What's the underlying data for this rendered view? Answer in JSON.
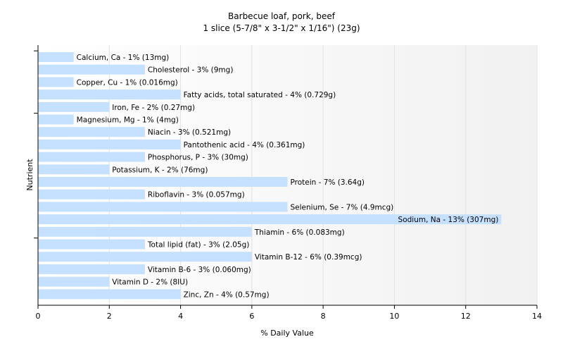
{
  "chart_data": {
    "type": "bar",
    "orientation": "horizontal",
    "title": "Barbecue loaf, pork, beef",
    "subtitle": "1 slice (5-7/8\" x 3-1/2\" x 1/16\") (23g)",
    "xlabel": "% Daily Value",
    "ylabel": "Nutrient",
    "xlim": [
      0,
      14
    ],
    "x_ticks": [
      "0",
      "2",
      "4",
      "6",
      "8",
      "10",
      "12",
      "14"
    ],
    "grid": "vertical",
    "bar_color": "#c6e0ff",
    "categories": [
      "Calcium, Ca",
      "Cholesterol",
      "Copper, Cu",
      "Fatty acids, total saturated",
      "Iron, Fe",
      "Magnesium, Mg",
      "Niacin",
      "Pantothenic acid",
      "Phosphorus, P",
      "Potassium, K",
      "Protein",
      "Riboflavin",
      "Selenium, Se",
      "Sodium, Na",
      "Thiamin",
      "Total lipid (fat)",
      "Vitamin B-12",
      "Vitamin B-6",
      "Vitamin D",
      "Zinc, Zn"
    ],
    "values": [
      1,
      3,
      1,
      4,
      2,
      1,
      3,
      4,
      3,
      2,
      7,
      3,
      7,
      13,
      6,
      3,
      6,
      3,
      2,
      4
    ],
    "labels": [
      "Calcium, Ca - 1% (13mg)",
      "Cholesterol - 3% (9mg)",
      "Copper, Cu - 1% (0.016mg)",
      "Fatty acids, total saturated - 4% (0.729g)",
      "Iron, Fe - 2% (0.27mg)",
      "Magnesium, Mg - 1% (4mg)",
      "Niacin - 3% (0.521mg)",
      "Pantothenic acid - 4% (0.361mg)",
      "Phosphorus, P - 3% (30mg)",
      "Potassium, K - 2% (76mg)",
      "Protein - 7% (3.64g)",
      "Riboflavin - 3% (0.057mg)",
      "Selenium, Se - 7% (4.9mcg)",
      "Sodium, Na - 13% (307mg)",
      "Thiamin - 6% (0.083mg)",
      "Total lipid (fat) - 3% (2.05g)",
      "Vitamin B-12 - 6% (0.39mcg)",
      "Vitamin B-6 - 3% (0.060mg)",
      "Vitamin D - 2% (8IU)",
      "Zinc, Zn - 4% (0.57mg)"
    ]
  }
}
